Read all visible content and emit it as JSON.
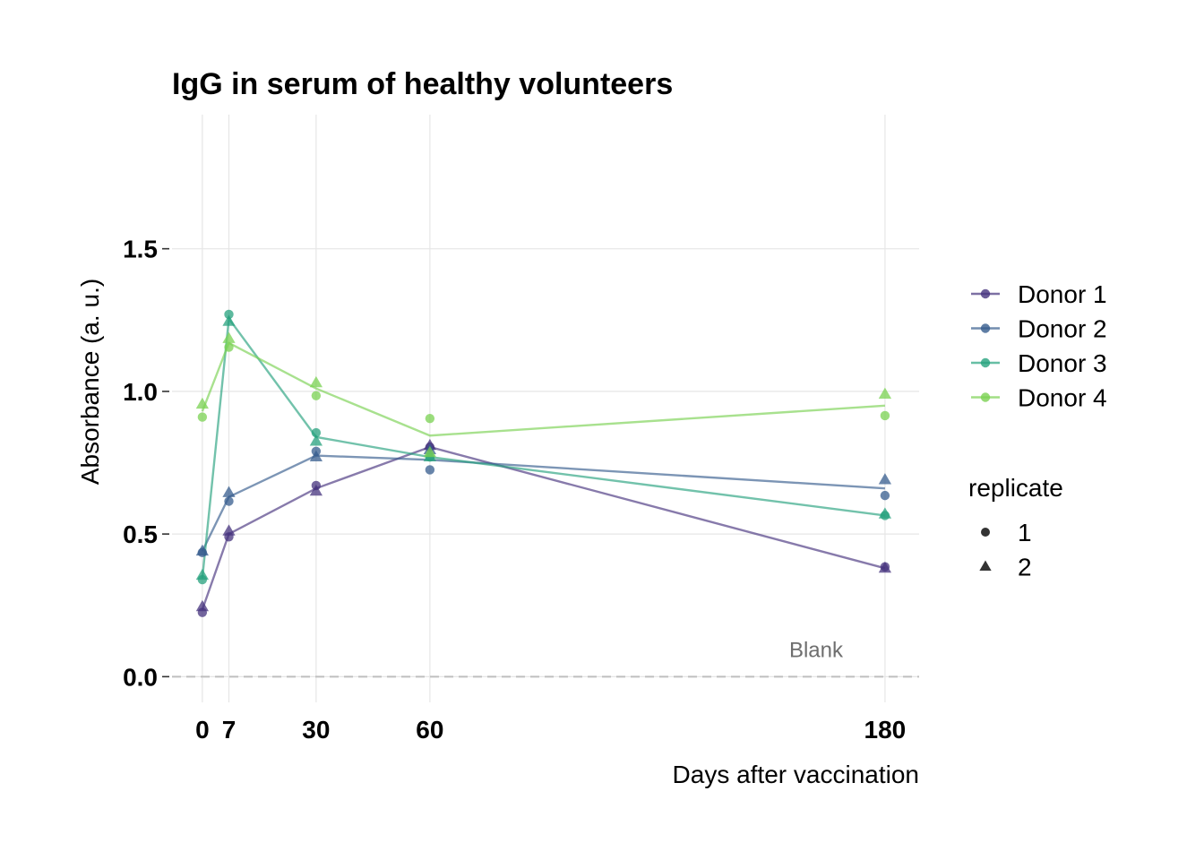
{
  "chart_data": {
    "type": "line",
    "title": "IgG in serum of healthy volunteers",
    "xlabel": "Days after vaccination",
    "ylabel": "Absorbance (a. u.)",
    "x_ticks": [
      0,
      7,
      30,
      60,
      180
    ],
    "y_ticks": [
      0.0,
      0.5,
      1.0,
      1.5
    ],
    "y_tick_labels": [
      "0.0",
      "0.5",
      "1.0",
      "1.5"
    ],
    "xlim": [
      -8,
      189
    ],
    "ylim": [
      -0.09,
      1.97
    ],
    "grid": true,
    "legend_position": "right",
    "colors": {
      "Donor 1": "#46337e",
      "Donor 2": "#365c8d",
      "Donor 3": "#27a27e",
      "Donor 4": "#7ad151",
      "blank_line": "#bfbfbf"
    },
    "series": [
      {
        "name": "Donor 1",
        "mean": [
          0.235,
          0.5,
          0.66,
          0.805,
          0.38
        ],
        "replicate_1": [
          0.225,
          0.49,
          0.67,
          0.805,
          0.385
        ],
        "replicate_2": [
          0.245,
          0.51,
          0.65,
          0.81,
          0.38
        ]
      },
      {
        "name": "Donor 2",
        "mean": [
          0.44,
          0.63,
          0.775,
          0.76,
          0.66
        ],
        "replicate_1": [
          0.435,
          0.615,
          0.79,
          0.725,
          0.635
        ],
        "replicate_2": [
          0.44,
          0.645,
          0.77,
          0.795,
          0.69
        ]
      },
      {
        "name": "Donor 3",
        "mean": [
          0.345,
          1.255,
          0.84,
          0.77,
          0.565
        ],
        "replicate_1": [
          0.34,
          1.27,
          0.855,
          0.77,
          0.565
        ],
        "replicate_2": [
          0.355,
          1.245,
          0.825,
          0.77,
          0.57
        ]
      },
      {
        "name": "Donor 4",
        "mean": [
          0.93,
          1.17,
          1.01,
          0.845,
          0.95
        ],
        "replicate_1": [
          0.91,
          1.155,
          0.985,
          0.905,
          0.915
        ],
        "replicate_2": [
          0.955,
          1.185,
          1.03,
          0.785,
          0.99
        ]
      }
    ],
    "legend": {
      "donor_entries": [
        "Donor 1",
        "Donor 2",
        "Donor 3",
        "Donor 4"
      ],
      "replicate_title": "replicate",
      "replicate_entries": [
        "1",
        "2"
      ]
    },
    "annotations": [
      {
        "text": "Blank",
        "y": 0.0
      }
    ]
  }
}
